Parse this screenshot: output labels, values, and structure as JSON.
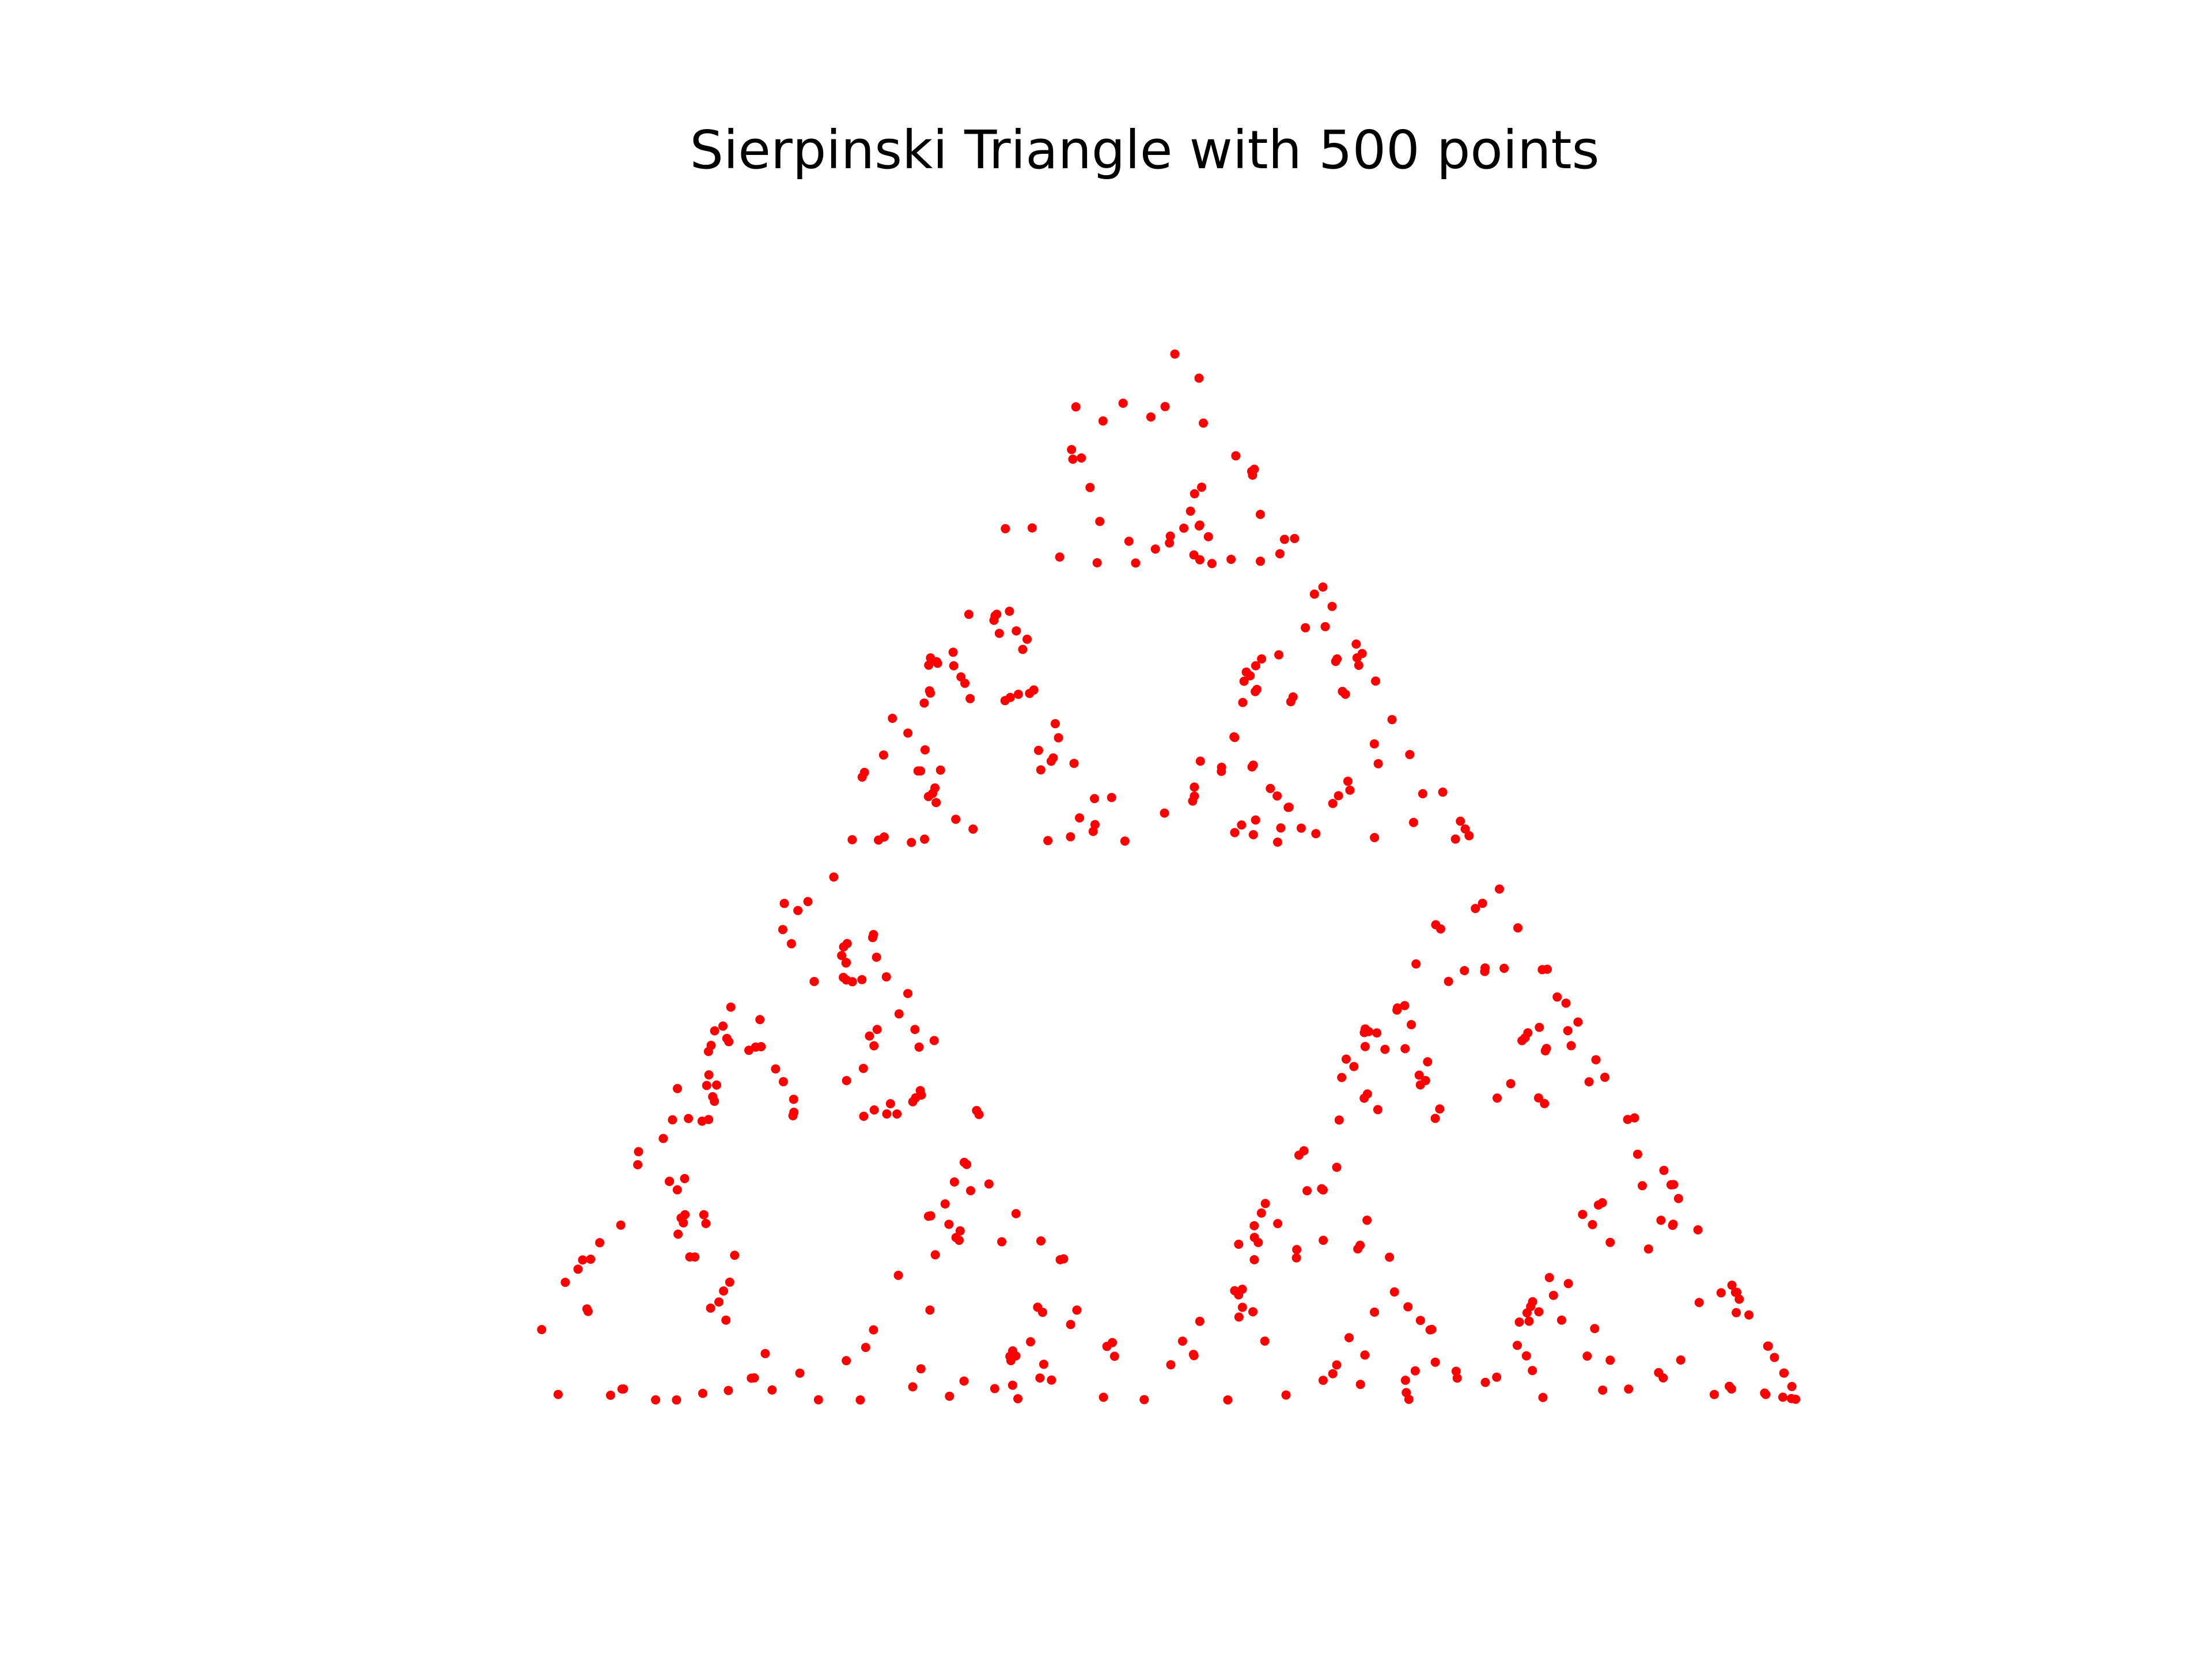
{
  "chart_data": {
    "type": "scatter",
    "title": "Sierpinski Triangle with 500 points",
    "xlabel": "",
    "ylabel": "",
    "xlim": [
      -0.02,
      1.02
    ],
    "ylim": [
      -0.02,
      0.886
    ],
    "axes_visible": false,
    "grid": false,
    "legend": "none",
    "generator": {
      "vertices": [
        [
          0,
          0
        ],
        [
          1,
          0
        ],
        [
          0.5,
          0.866
        ]
      ],
      "ratio": 0.5,
      "n_points": 500
    },
    "series": [
      {
        "marker_color": "#ff0000",
        "marker": "circle",
        "count": 500
      }
    ]
  }
}
